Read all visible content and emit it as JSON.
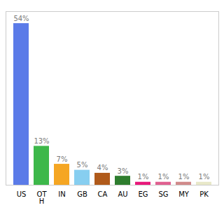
{
  "chart_data": {
    "type": "bar",
    "categories": [
      "US",
      "OT\nH",
      "IN",
      "GB",
      "CA",
      "AU",
      "EG",
      "SG",
      "MY",
      "PK"
    ],
    "values": [
      54,
      13,
      7,
      5,
      4,
      3,
      1,
      1,
      1,
      1
    ],
    "value_labels": [
      "54%",
      "13%",
      "7%",
      "5%",
      "4%",
      "3%",
      "1%",
      "1%",
      "1%",
      "1%"
    ],
    "colors": [
      "#5b7be8",
      "#3db84a",
      "#f5a623",
      "#87cef0",
      "#b05a1a",
      "#2e7d2e",
      "#e8187a",
      "#e06090",
      "#d08a8a",
      "#e8e8c8"
    ],
    "ylim": [
      0,
      58
    ],
    "data_labels": true,
    "tick_labels": "x",
    "grid": false
  }
}
